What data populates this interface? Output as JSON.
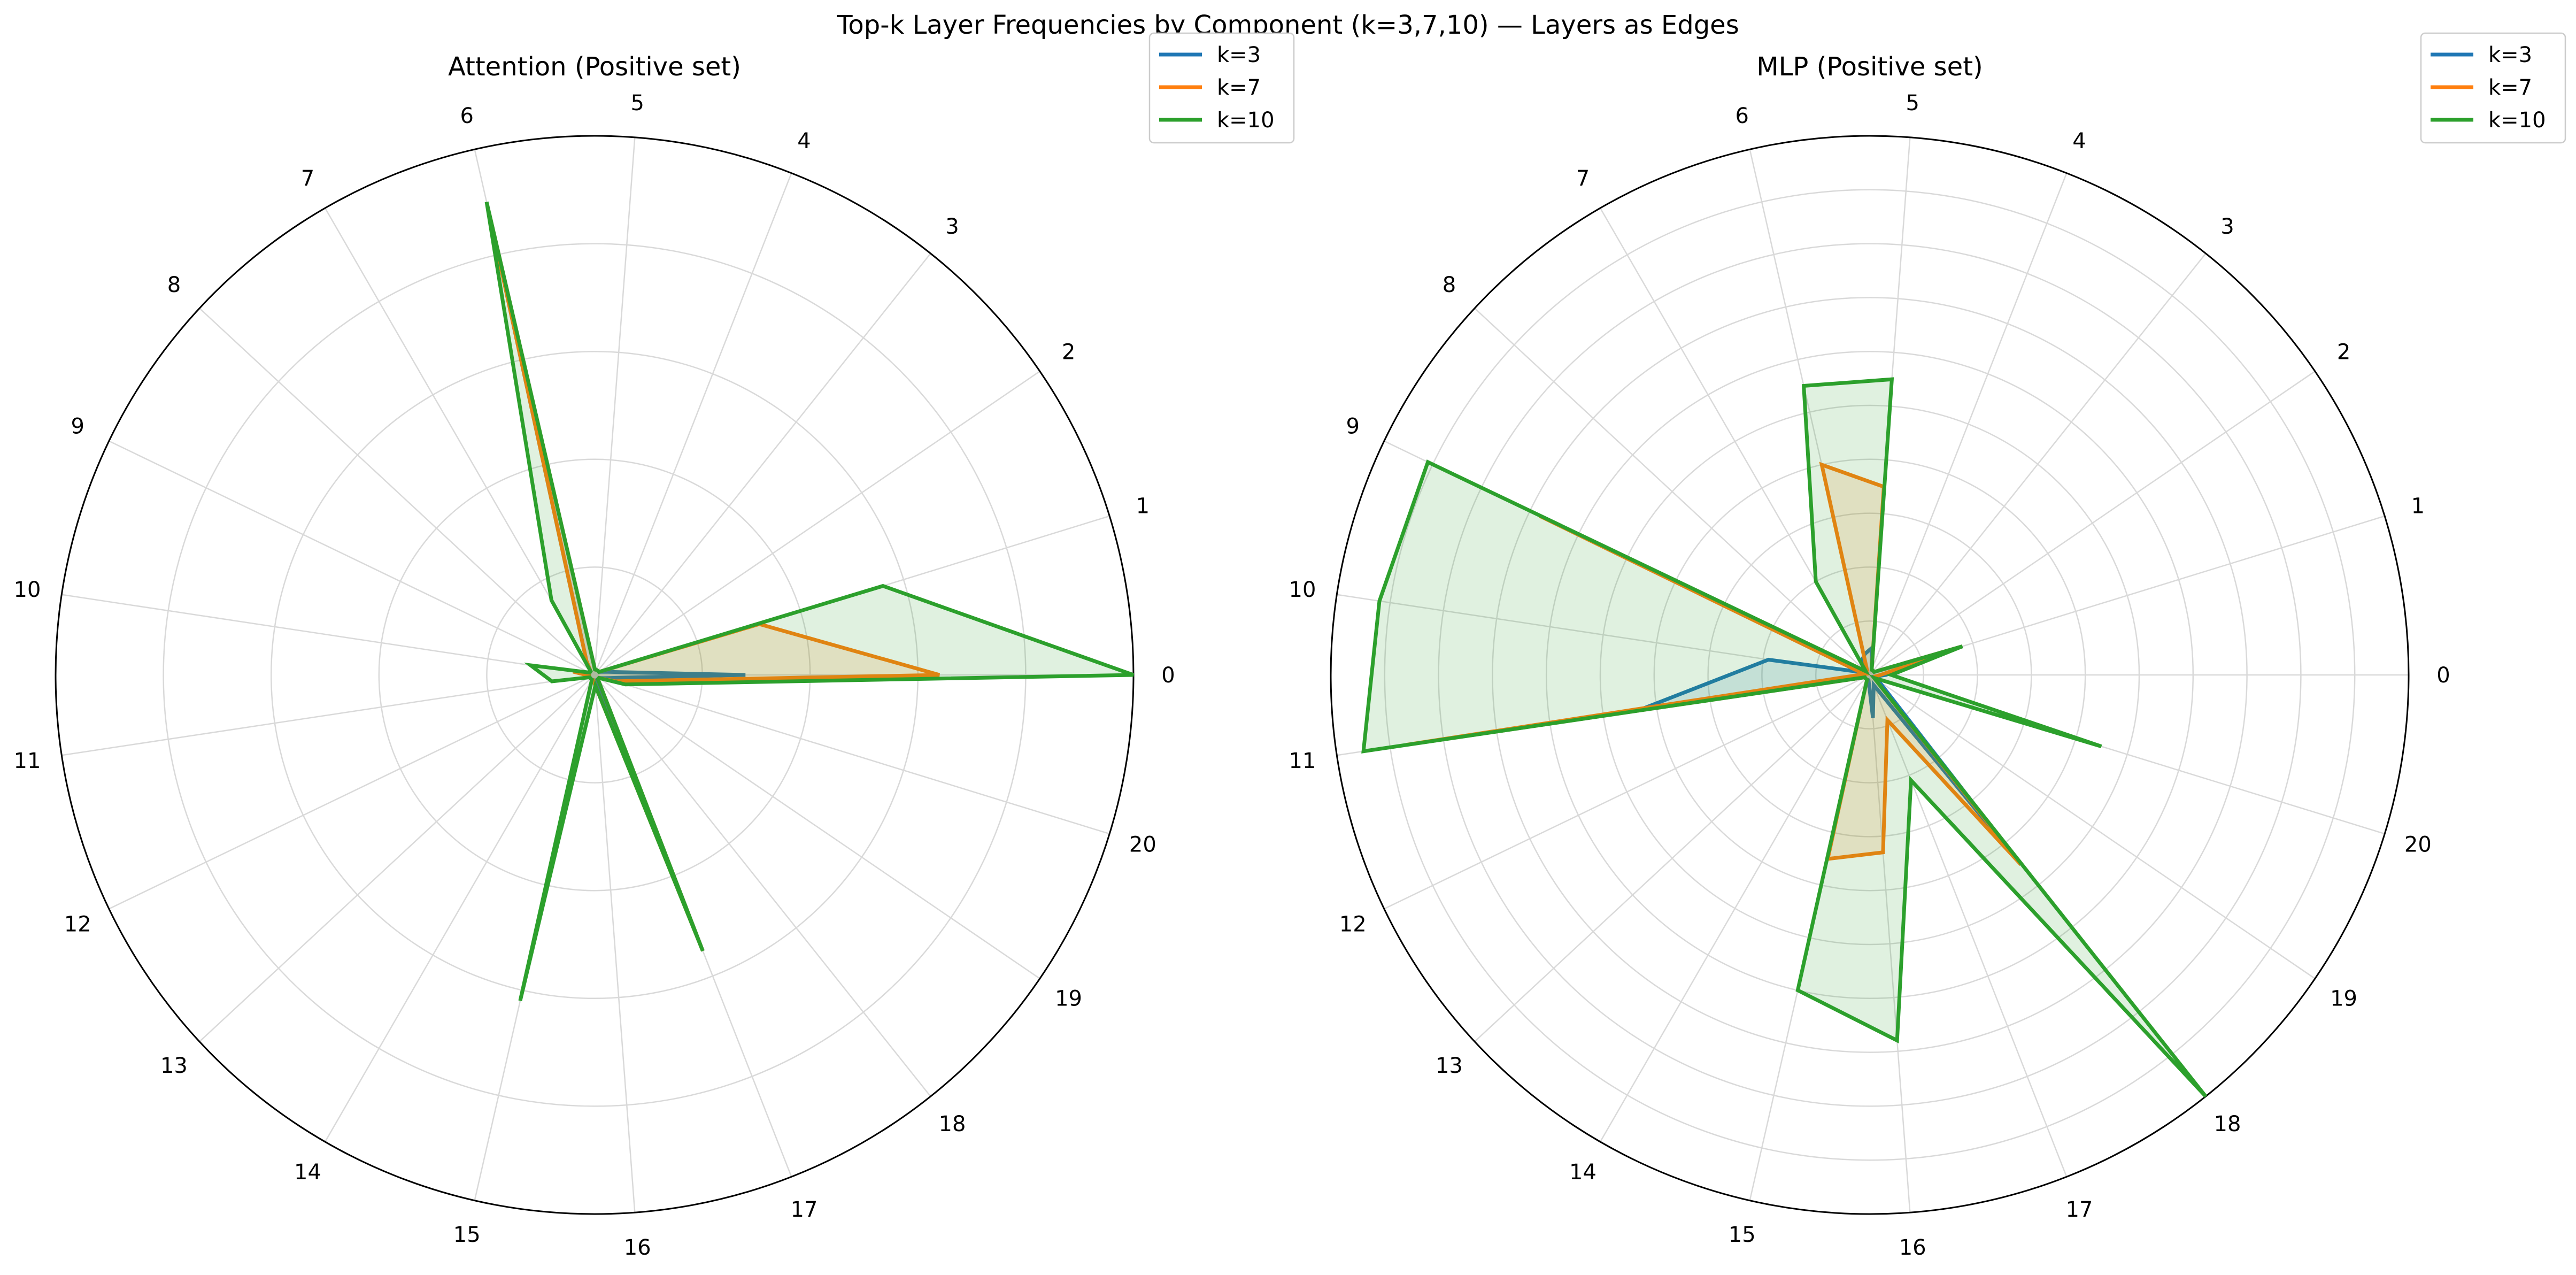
{
  "figure": {
    "title": "Top-k Layer Frequencies by Component (k=3,7,10) — Layers as Edges"
  },
  "colors": {
    "k3": "#1f77b4",
    "k7": "#ff7f0e",
    "k10": "#2ca02c"
  },
  "chart_data": [
    {
      "type": "radar",
      "title": "Attention (Positive set)",
      "categories": [
        "0",
        "1",
        "2",
        "3",
        "4",
        "5",
        "6",
        "7",
        "8",
        "9",
        "10",
        "11",
        "12",
        "13",
        "14",
        "15",
        "16",
        "17",
        "18",
        "19",
        "20"
      ],
      "rmax": 1.0,
      "rings": 5,
      "grid": true,
      "legend": "top-right",
      "series": [
        {
          "name": "k=3",
          "color": "#1f77b4",
          "values": [
            0.28,
            0.02,
            0.01,
            0.01,
            0.01,
            0.01,
            0.88,
            0.03,
            0.01,
            0.01,
            0.01,
            0.01,
            0.01,
            0.01,
            0.01,
            0.01,
            0.01,
            0.55,
            0.01,
            0.01,
            0.02
          ]
        },
        {
          "name": "k=7",
          "color": "#ff7f0e",
          "values": [
            0.64,
            0.32,
            0.01,
            0.01,
            0.01,
            0.01,
            0.88,
            0.03,
            0.01,
            0.01,
            0.04,
            0.01,
            0.01,
            0.01,
            0.01,
            0.01,
            0.02,
            0.55,
            0.01,
            0.01,
            0.04
          ]
        },
        {
          "name": "k=10",
          "color": "#2ca02c",
          "values": [
            1.0,
            0.56,
            0.01,
            0.01,
            0.01,
            0.01,
            0.9,
            0.16,
            0.01,
            0.01,
            0.12,
            0.08,
            0.01,
            0.01,
            0.01,
            0.62,
            0.02,
            0.55,
            0.01,
            0.01,
            0.06
          ]
        }
      ]
    },
    {
      "type": "radar",
      "title": "MLP (Positive set)",
      "categories": [
        "0",
        "1",
        "2",
        "3",
        "4",
        "5",
        "6",
        "7",
        "8",
        "9",
        "10",
        "11",
        "12",
        "13",
        "14",
        "15",
        "16",
        "17",
        "18",
        "19",
        "20"
      ],
      "rmax": 1.0,
      "rings": 10,
      "grid": true,
      "legend": "top-right",
      "series": [
        {
          "name": "k=3",
          "color": "#1f77b4",
          "values": [
            0.03,
            0.18,
            0.01,
            0.01,
            0.01,
            0.05,
            0.04,
            0.03,
            0.01,
            0.01,
            0.19,
            0.43,
            0.01,
            0.01,
            0.01,
            0.01,
            0.08,
            0.02,
            0.45,
            0.02,
            0.01
          ]
        },
        {
          "name": "k=7",
          "color": "#ff7f0e",
          "values": [
            0.02,
            0.18,
            0.01,
            0.01,
            0.01,
            0.35,
            0.4,
            0.01,
            0.01,
            0.68,
            0.01,
            0.87,
            0.01,
            0.01,
            0.01,
            0.35,
            0.33,
            0.09,
            0.45,
            0.01,
            0.01
          ]
        },
        {
          "name": "k=10",
          "color": "#2ca02c",
          "values": [
            0.04,
            0.18,
            0.01,
            0.01,
            0.01,
            0.55,
            0.55,
            0.2,
            0.01,
            0.91,
            0.92,
            0.95,
            0.01,
            0.01,
            0.01,
            0.6,
            0.68,
            0.21,
            1.0,
            0.01,
            0.45
          ]
        }
      ]
    }
  ]
}
